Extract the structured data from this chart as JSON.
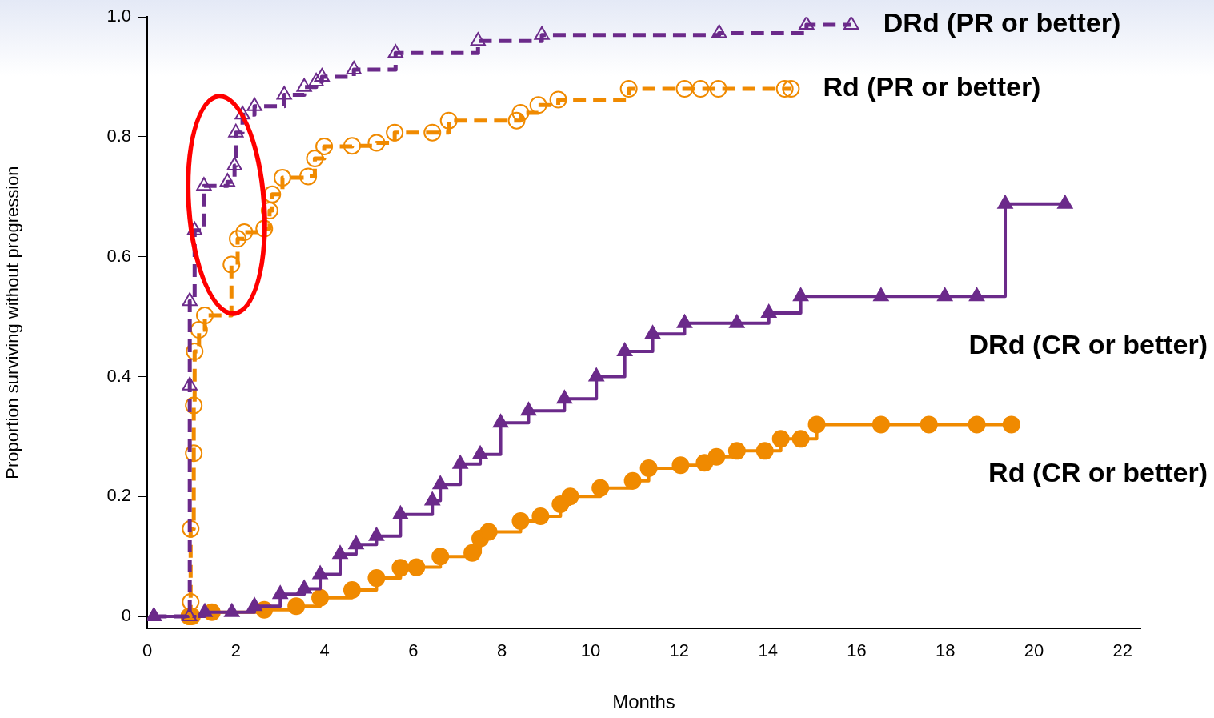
{
  "chart_data": {
    "type": "step",
    "xlabel": "Months",
    "ylabel": "Proportion surviving without progression",
    "xlim": [
      0,
      22.4
    ],
    "xticks": [
      0,
      2,
      4,
      6,
      8,
      10,
      12,
      14,
      16,
      18,
      20,
      22
    ],
    "ylim": [
      -0.02,
      1.0
    ],
    "yticks": [
      0,
      {
        "value": 0.2,
        "label": "0.2"
      },
      {
        "value": 0.4,
        "label": "0.4"
      },
      {
        "value": 0.6,
        "label": "0.6"
      },
      {
        "value": 0.8,
        "label": "0.8"
      },
      {
        "value": 1.0,
        "label": "1.0"
      }
    ],
    "grid": false,
    "legend": false,
    "series": [
      {
        "name": "DRd (PR or better)",
        "color": "#6b2a8a",
        "marker": "triangle",
        "line_style": "dashed",
        "x": [
          0.15,
          0.95,
          0.96,
          0.96,
          1.07,
          1.28,
          1.81,
          1.97,
          2.0,
          2.15,
          2.42,
          3.09,
          3.54,
          3.81,
          3.94,
          4.66,
          5.6,
          7.46,
          8.9,
          12.9,
          14.87,
          15.88
        ],
        "values": [
          0,
          0,
          0.385,
          0.526,
          0.644,
          0.718,
          0.725,
          0.752,
          0.807,
          0.837,
          0.851,
          0.87,
          0.883,
          0.892,
          0.9,
          0.912,
          0.94,
          0.96,
          0.97,
          0.973,
          0.987,
          0.987
        ]
      },
      {
        "name": "Rd (PR or better)",
        "color": "#f08a00",
        "marker": "circle",
        "line_style": "dashed",
        "x": [
          0.95,
          0.98,
          0.98,
          1.05,
          1.05,
          1.07,
          1.17,
          1.3,
          1.9,
          2.04,
          2.19,
          2.64,
          2.76,
          2.82,
          3.05,
          3.63,
          3.78,
          3.99,
          4.62,
          5.17,
          5.58,
          6.43,
          6.8,
          8.33,
          8.42,
          8.82,
          9.27,
          10.86,
          12.12,
          12.48,
          12.88,
          14.38,
          14.52
        ],
        "values": [
          0,
          0.024,
          0.146,
          0.272,
          0.352,
          0.442,
          0.478,
          0.502,
          0.587,
          0.63,
          0.641,
          0.647,
          0.677,
          0.704,
          0.732,
          0.734,
          0.764,
          0.784,
          0.785,
          0.79,
          0.807,
          0.807,
          0.827,
          0.827,
          0.84,
          0.853,
          0.862,
          0.88,
          0.88,
          0.88,
          0.88,
          0.88,
          0.88
        ]
      },
      {
        "name": "DRd (CR or better)",
        "color": "#6b2a8a",
        "marker": "triangle",
        "line_style": "solid",
        "x": [
          0.15,
          1.3,
          1.91,
          2.42,
          3.0,
          3.54,
          3.9,
          4.35,
          4.71,
          5.17,
          5.71,
          6.43,
          6.61,
          7.06,
          7.51,
          7.97,
          8.6,
          9.41,
          10.13,
          10.77,
          11.4,
          12.12,
          13.3,
          14.02,
          14.74,
          16.55,
          17.99,
          18.71,
          19.35,
          20.7
        ],
        "values": [
          0,
          0.007,
          0.007,
          0.017,
          0.037,
          0.046,
          0.07,
          0.104,
          0.12,
          0.134,
          0.17,
          0.193,
          0.22,
          0.254,
          0.27,
          0.323,
          0.343,
          0.363,
          0.4,
          0.442,
          0.471,
          0.489,
          0.489,
          0.506,
          0.534,
          0.534,
          0.534,
          0.534,
          0.688,
          0.688
        ]
      },
      {
        "name": "Rd (CR or better)",
        "color": "#f08a00",
        "marker": "circle",
        "line_style": "solid",
        "x": [
          0.95,
          1.01,
          1.46,
          2.64,
          3.36,
          3.9,
          4.62,
          5.17,
          5.71,
          6.07,
          6.61,
          7.33,
          7.51,
          7.7,
          8.42,
          8.87,
          9.32,
          9.54,
          10.22,
          10.95,
          11.31,
          12.03,
          12.57,
          12.84,
          13.3,
          13.93,
          14.29,
          14.74,
          15.1,
          16.55,
          17.63,
          18.71,
          19.49
        ],
        "values": [
          0,
          0,
          0.007,
          0.011,
          0.017,
          0.031,
          0.044,
          0.064,
          0.081,
          0.082,
          0.1,
          0.106,
          0.13,
          0.141,
          0.159,
          0.167,
          0.187,
          0.2,
          0.214,
          0.226,
          0.247,
          0.252,
          0.256,
          0.266,
          0.276,
          0.276,
          0.296,
          0.296,
          0.32,
          0.32,
          0.32,
          0.32,
          0.32
        ]
      }
    ]
  }
}
